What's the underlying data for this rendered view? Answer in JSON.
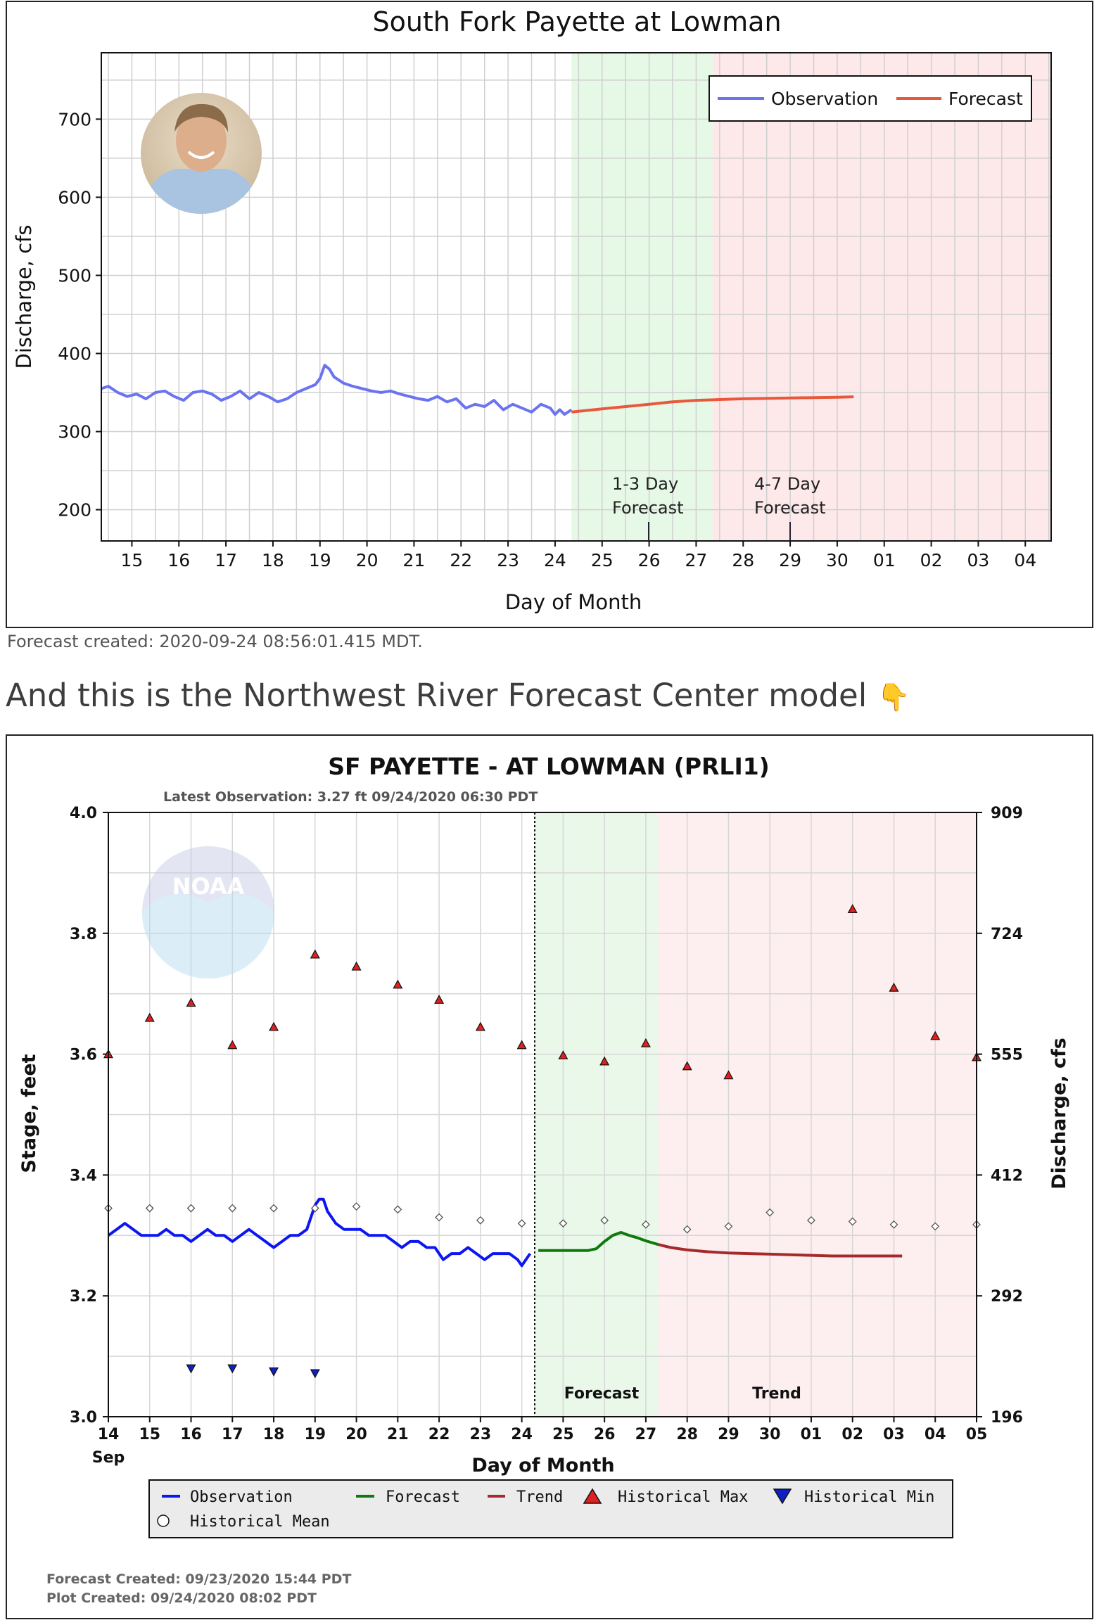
{
  "chart_data": [
    {
      "type": "line",
      "title": "South Fork Payette at Lowman",
      "xlabel": "Day of Month",
      "ylabel": "Discharge, cfs",
      "x_ticks": [
        "15",
        "16",
        "17",
        "18",
        "19",
        "20",
        "21",
        "22",
        "23",
        "24",
        "25",
        "26",
        "27",
        "28",
        "29",
        "30",
        "01",
        "02",
        "03",
        "04"
      ],
      "y_ticks": [
        200,
        300,
        400,
        500,
        600,
        700
      ],
      "ylim": [
        160,
        785
      ],
      "xlim": [
        14.35,
        34.55
      ],
      "grid": true,
      "legend": "top-right",
      "series": [
        {
          "name": "Observation",
          "color": "#6b74f0",
          "x": [
            14.35,
            14.5,
            14.7,
            14.9,
            15.1,
            15.3,
            15.5,
            15.7,
            15.9,
            16.1,
            16.3,
            16.5,
            16.7,
            16.9,
            17.1,
            17.3,
            17.5,
            17.7,
            17.9,
            18.1,
            18.3,
            18.5,
            18.7,
            18.9,
            19.0,
            19.1,
            19.2,
            19.3,
            19.5,
            19.7,
            19.9,
            20.1,
            20.3,
            20.5,
            20.7,
            20.9,
            21.1,
            21.3,
            21.5,
            21.7,
            21.9,
            22.1,
            22.3,
            22.5,
            22.7,
            22.9,
            23.1,
            23.3,
            23.5,
            23.7,
            23.9,
            24.0,
            24.1,
            24.2,
            24.35
          ],
          "y": [
            355,
            358,
            350,
            345,
            348,
            342,
            350,
            352,
            345,
            340,
            350,
            352,
            348,
            340,
            345,
            352,
            342,
            350,
            345,
            338,
            342,
            350,
            355,
            360,
            368,
            385,
            380,
            370,
            362,
            358,
            355,
            352,
            350,
            352,
            348,
            345,
            342,
            340,
            345,
            338,
            342,
            330,
            335,
            332,
            340,
            328,
            335,
            330,
            325,
            335,
            330,
            322,
            328,
            322,
            328
          ]
        },
        {
          "name": "Forecast",
          "color": "#e8583c",
          "x": [
            24.35,
            25.0,
            25.5,
            26.0,
            26.5,
            27.0,
            27.5,
            28.0,
            28.5,
            29.0,
            29.5,
            30.0,
            30.35
          ],
          "y": [
            325,
            329,
            332,
            335,
            338,
            340,
            341,
            342,
            342.5,
            343,
            343.5,
            344,
            344.5
          ]
        }
      ],
      "shaded_regions": [
        {
          "label": "1-3 Day\nForecast",
          "from": 24.35,
          "to": 27.35,
          "color": "#e6f8e6"
        },
        {
          "label": "4-7 Day\nForecast",
          "from": 27.35,
          "to": 34.55,
          "color": "#fde8ea"
        }
      ],
      "region_labels": [
        "1-3 Day",
        "Forecast",
        "4-7 Day",
        "Forecast"
      ]
    },
    {
      "type": "line",
      "title": "SF PAYETTE - AT LOWMAN  (PRLI1)",
      "subtitle": "Latest Observation: 3.27 ft 09/24/2020 06:30 PDT",
      "xlabel": "Day of Month",
      "ylabel": "Stage, feet",
      "ylabel_right": "Discharge, cfs",
      "x_ticks": [
        "14",
        "15",
        "16",
        "17",
        "18",
        "19",
        "20",
        "21",
        "22",
        "23",
        "24",
        "25",
        "26",
        "27",
        "28",
        "29",
        "30",
        "01",
        "02",
        "03",
        "04",
        "05"
      ],
      "x_month_label": "Sep",
      "y_ticks": [
        "3.0",
        "3.2",
        "3.4",
        "3.6",
        "3.8",
        "4.0"
      ],
      "y_right_ticks": [
        "196",
        "292",
        "412",
        "555",
        "724",
        "909"
      ],
      "ylim": [
        3.0,
        4.0
      ],
      "xlim": [
        14,
        35
      ],
      "grid": true,
      "legend": "bottom",
      "series": [
        {
          "name": "Observation",
          "color": "#0b16f2",
          "x": [
            14.0,
            14.2,
            14.4,
            14.6,
            14.8,
            15.0,
            15.2,
            15.4,
            15.6,
            15.8,
            16.0,
            16.2,
            16.4,
            16.6,
            16.8,
            17.0,
            17.2,
            17.4,
            17.6,
            17.8,
            18.0,
            18.2,
            18.4,
            18.6,
            18.8,
            19.0,
            19.1,
            19.2,
            19.3,
            19.5,
            19.7,
            19.9,
            20.1,
            20.3,
            20.5,
            20.7,
            20.9,
            21.1,
            21.3,
            21.5,
            21.7,
            21.9,
            22.1,
            22.3,
            22.5,
            22.7,
            22.9,
            23.1,
            23.3,
            23.5,
            23.7,
            23.9,
            24.0,
            24.2
          ],
          "y": [
            3.3,
            3.31,
            3.32,
            3.31,
            3.3,
            3.3,
            3.3,
            3.31,
            3.3,
            3.3,
            3.29,
            3.3,
            3.31,
            3.3,
            3.3,
            3.29,
            3.3,
            3.31,
            3.3,
            3.29,
            3.28,
            3.29,
            3.3,
            3.3,
            3.31,
            3.35,
            3.36,
            3.36,
            3.34,
            3.32,
            3.31,
            3.31,
            3.31,
            3.3,
            3.3,
            3.3,
            3.29,
            3.28,
            3.29,
            3.29,
            3.28,
            3.28,
            3.26,
            3.27,
            3.27,
            3.28,
            3.27,
            3.26,
            3.27,
            3.27,
            3.27,
            3.26,
            3.25,
            3.27
          ]
        },
        {
          "name": "Forecast",
          "color": "#0e7a0e",
          "x": [
            24.4,
            24.8,
            25.2,
            25.6,
            25.8,
            26.0,
            26.2,
            26.4,
            26.6,
            26.8,
            27.0,
            27.3
          ],
          "y": [
            3.275,
            3.275,
            3.275,
            3.275,
            3.278,
            3.29,
            3.3,
            3.305,
            3.3,
            3.296,
            3.291,
            3.285
          ]
        },
        {
          "name": "Trend",
          "color": "#a52a2a",
          "x": [
            27.3,
            27.6,
            28.0,
            28.5,
            29.0,
            29.5,
            30.0,
            30.5,
            31.0,
            31.5,
            32.0,
            32.5,
            33.0,
            33.2
          ],
          "y": [
            3.285,
            3.28,
            3.276,
            3.273,
            3.271,
            3.27,
            3.269,
            3.268,
            3.267,
            3.266,
            3.266,
            3.266,
            3.266,
            3.266
          ]
        },
        {
          "name": "Historical Max",
          "color": "#e02020",
          "x": [
            14,
            15,
            16,
            17,
            18,
            19,
            20,
            21,
            22,
            23,
            24,
            25,
            26,
            27,
            28,
            29,
            32,
            33,
            34,
            35
          ],
          "y": [
            3.6,
            3.66,
            3.685,
            3.615,
            3.645,
            3.765,
            3.745,
            3.715,
            3.69,
            3.645,
            3.615,
            3.598,
            3.588,
            3.618,
            3.58,
            3.565,
            3.84,
            3.71,
            3.63,
            3.595
          ]
        },
        {
          "name": "Historical Min",
          "color": "#1020c0",
          "x": [
            16,
            17,
            18,
            19
          ],
          "y": [
            3.08,
            3.08,
            3.075,
            3.072
          ]
        },
        {
          "name": "Historical Mean",
          "color": "#555555",
          "x": [
            14,
            15,
            16,
            17,
            18,
            19,
            20,
            21,
            22,
            23,
            24,
            25,
            26,
            27,
            28,
            29,
            30,
            31,
            32,
            33,
            34,
            35
          ],
          "y": [
            3.345,
            3.345,
            3.345,
            3.345,
            3.345,
            3.345,
            3.348,
            3.343,
            3.33,
            3.325,
            3.32,
            3.32,
            3.325,
            3.318,
            3.31,
            3.315,
            3.338,
            3.325,
            3.323,
            3.318,
            3.315,
            3.318
          ]
        }
      ],
      "shaded_regions": [
        {
          "label": "Forecast",
          "from": 24.3,
          "to": 27.3,
          "color": "#eaf8ea"
        },
        {
          "label": "Trend",
          "from": 27.3,
          "to": 35,
          "color": "#fdeef0"
        }
      ],
      "footer": [
        "Forecast Created: 09/23/2020 15:44 PDT",
        "Plot Created: 09/24/2020 08:02 PDT"
      ]
    }
  ],
  "caption": "Forecast created: 2020-09-24 08:56:01.415 MDT.",
  "heading": "And this is the Northwest River Forecast Center model",
  "heading_emoji": "👇",
  "logo_text": "NOAA"
}
